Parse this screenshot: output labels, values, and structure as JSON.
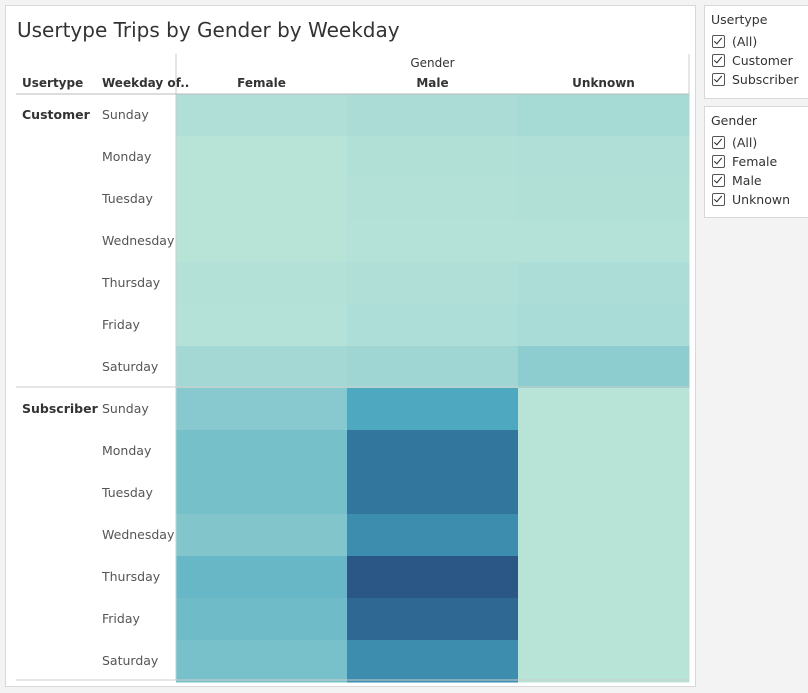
{
  "colors": {
    "heat_low": "#bce6d9",
    "heat_high": "#2b5787",
    "divider": "#cccccc"
  },
  "filters": {
    "usertype": {
      "title": "Usertype",
      "items": [
        {
          "label": "(All)",
          "checked": true
        },
        {
          "label": "Customer",
          "checked": true
        },
        {
          "label": "Subscriber",
          "checked": true
        }
      ]
    },
    "gender": {
      "title": "Gender",
      "items": [
        {
          "label": "(All)",
          "checked": true
        },
        {
          "label": "Female",
          "checked": true
        },
        {
          "label": "Male",
          "checked": true
        },
        {
          "label": "Unknown",
          "checked": true
        }
      ]
    }
  },
  "chart_data": {
    "type": "heatmap",
    "title": "Usertype Trips by Gender by Weekday",
    "column_group_label": "Gender",
    "row_header_labels": [
      "Usertype",
      "Weekday of.."
    ],
    "columns": [
      "Female",
      "Male",
      "Unknown"
    ],
    "row_groups": [
      {
        "name": "Customer",
        "rows": [
          "Sunday",
          "Monday",
          "Tuesday",
          "Wednesday",
          "Thursday",
          "Friday",
          "Saturday"
        ],
        "intensity": [
          [
            0.1,
            0.13,
            0.16
          ],
          [
            0.03,
            0.08,
            0.09
          ],
          [
            0.03,
            0.07,
            0.08
          ],
          [
            0.03,
            0.05,
            0.05
          ],
          [
            0.07,
            0.1,
            0.12
          ],
          [
            0.05,
            0.11,
            0.14
          ],
          [
            0.17,
            0.19,
            0.26
          ]
        ]
      },
      {
        "name": "Subscriber",
        "rows": [
          "Sunday",
          "Monday",
          "Tuesday",
          "Wednesday",
          "Thursday",
          "Friday",
          "Saturday"
        ],
        "intensity": [
          [
            0.29,
            0.52,
            0.03
          ],
          [
            0.36,
            0.78,
            0.03
          ],
          [
            0.36,
            0.78,
            0.03
          ],
          [
            0.31,
            0.66,
            0.03
          ],
          [
            0.42,
            1.0,
            0.03
          ],
          [
            0.39,
            0.88,
            0.03
          ],
          [
            0.35,
            0.66,
            0.03
          ]
        ]
      }
    ]
  }
}
